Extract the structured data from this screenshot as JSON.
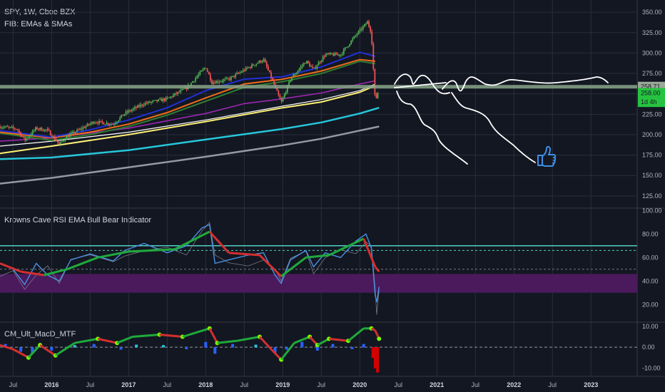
{
  "header": {
    "symbol_line": "SPY, 1W, Cboe BZX",
    "indicator_line": "FIB: EMAs & SMAs"
  },
  "rsi_panel": {
    "title": "Krowns Cave RSI EMA Bull Bear Indicator"
  },
  "macd_panel": {
    "title": "CM_Ult_MacD_MTF"
  },
  "price_tags": [
    {
      "text": "258.71",
      "bg": "#9aa898",
      "fg": "#131722"
    },
    {
      "text": "258.00",
      "bg": "#26c340",
      "fg": "#131722"
    },
    {
      "text": "1d 4h",
      "bg": "#26c340",
      "fg": "#131722"
    }
  ],
  "colors": {
    "background": "#131722",
    "grid": "#2a2e39",
    "price_line": "#89a689",
    "ema_blue": "#2130d8",
    "ema_orange": "#ef6c1a",
    "ema_red": "#c62828",
    "ema_green": "#2e7d32",
    "ema_purple": "#9c27b0",
    "sma_yellow": "#fff176",
    "sma_white": "#ffffff",
    "sma_teal": "#26c6da",
    "sma_gray": "#9598a1",
    "rsi_band": "#4a1a5c",
    "rsi_upper": "#4dd0c1",
    "rsi_line": "#4a90e2",
    "macd_up": "#00c853",
    "macd_down": "#d50000",
    "macd_hist_pos": "#26c6da",
    "macd_hist_blue": "#2962ff",
    "drawing": "#ffffff",
    "thumbs": "#3f8ee8"
  },
  "chart_data": [
    {
      "type": "candlestick",
      "title": "SPY, 1W, Cboe BZX",
      "subtitle": "FIB: EMAs & SMAs",
      "x_ticks": [
        "Jul",
        "2016",
        "Jul",
        "2017",
        "Jul",
        "2018",
        "Jul",
        "2019",
        "Jul",
        "2020",
        "Jul",
        "2021",
        "Jul",
        "2022",
        "Jul",
        "2023"
      ],
      "x_ticks_year": [
        false,
        true,
        false,
        true,
        false,
        true,
        false,
        true,
        false,
        true,
        false,
        true,
        false,
        true,
        false,
        true
      ],
      "y_ticks": [
        350,
        325,
        300,
        275,
        250,
        225,
        200,
        175,
        150,
        125
      ],
      "ylim": [
        110,
        365
      ],
      "x_start": 2015.33,
      "x_end": 2023.6,
      "price_path": [
        [
          2015.33,
          210
        ],
        [
          2015.55,
          207
        ],
        [
          2015.65,
          193
        ],
        [
          2015.8,
          208
        ],
        [
          2015.95,
          205
        ],
        [
          2016.1,
          188
        ],
        [
          2016.2,
          198
        ],
        [
          2016.4,
          208
        ],
        [
          2016.55,
          216
        ],
        [
          2016.8,
          213
        ],
        [
          2016.95,
          226
        ],
        [
          2017.2,
          238
        ],
        [
          2017.5,
          244
        ],
        [
          2017.75,
          257
        ],
        [
          2018.0,
          283
        ],
        [
          2018.08,
          264
        ],
        [
          2018.3,
          268
        ],
        [
          2018.55,
          282
        ],
        [
          2018.75,
          292
        ],
        [
          2018.85,
          270
        ],
        [
          2018.98,
          239
        ],
        [
          2019.1,
          268
        ],
        [
          2019.3,
          290
        ],
        [
          2019.4,
          280
        ],
        [
          2019.55,
          298
        ],
        [
          2019.75,
          298
        ],
        [
          2019.95,
          322
        ],
        [
          2020.1,
          338
        ],
        [
          2020.15,
          325
        ],
        [
          2020.2,
          240
        ],
        [
          2020.25,
          258
        ]
      ],
      "ema_blue_path": [
        [
          2015.33,
          205
        ],
        [
          2016.0,
          197
        ],
        [
          2016.5,
          206
        ],
        [
          2017.0,
          218
        ],
        [
          2017.5,
          233
        ],
        [
          2018.0,
          254
        ],
        [
          2018.5,
          268
        ],
        [
          2019.0,
          271
        ],
        [
          2019.5,
          283
        ],
        [
          2020.0,
          301
        ],
        [
          2020.2,
          296
        ]
      ],
      "ema_orange_path": [
        [
          2015.33,
          203
        ],
        [
          2016.0,
          196
        ],
        [
          2016.5,
          203
        ],
        [
          2017.0,
          213
        ],
        [
          2017.5,
          227
        ],
        [
          2018.0,
          245
        ],
        [
          2018.5,
          262
        ],
        [
          2019.0,
          268
        ],
        [
          2019.5,
          278
        ],
        [
          2020.0,
          292
        ],
        [
          2020.2,
          290
        ]
      ],
      "ema_green_path": [
        [
          2015.33,
          202
        ],
        [
          2016.0,
          193
        ],
        [
          2016.5,
          200
        ],
        [
          2017.0,
          210
        ],
        [
          2017.5,
          224
        ],
        [
          2018.0,
          241
        ],
        [
          2018.5,
          258
        ],
        [
          2019.0,
          265
        ],
        [
          2019.5,
          275
        ],
        [
          2020.0,
          290
        ],
        [
          2020.2,
          287
        ]
      ],
      "sma_purple_path": [
        [
          2015.33,
          192
        ],
        [
          2016.0,
          196
        ],
        [
          2017.0,
          208
        ],
        [
          2018.0,
          226
        ],
        [
          2018.5,
          238
        ],
        [
          2019.0,
          244
        ],
        [
          2019.5,
          251
        ],
        [
          2020.0,
          262
        ],
        [
          2020.2,
          266
        ]
      ],
      "sma_yellow_path": [
        [
          2015.33,
          177
        ],
        [
          2016.0,
          186
        ],
        [
          2017.0,
          200
        ],
        [
          2018.0,
          216
        ],
        [
          2019.0,
          233
        ],
        [
          2019.5,
          240
        ],
        [
          2020.0,
          252
        ],
        [
          2020.2,
          260
        ]
      ],
      "sma_white_path": [
        [
          2015.33,
          186
        ],
        [
          2016.0,
          192
        ],
        [
          2017.0,
          203
        ],
        [
          2018.0,
          218
        ],
        [
          2019.0,
          235
        ],
        [
          2019.5,
          243
        ],
        [
          2020.0,
          254
        ],
        [
          2020.2,
          262
        ]
      ],
      "sma_teal_path": [
        [
          2015.33,
          170
        ],
        [
          2016.0,
          172
        ],
        [
          2017.0,
          181
        ],
        [
          2018.0,
          194
        ],
        [
          2019.0,
          207
        ],
        [
          2019.5,
          215
        ],
        [
          2020.0,
          226
        ],
        [
          2020.25,
          233
        ]
      ],
      "sma_gray_path": [
        [
          2015.33,
          140
        ],
        [
          2016.0,
          147
        ],
        [
          2017.0,
          160
        ],
        [
          2018.0,
          173
        ],
        [
          2019.0,
          187
        ],
        [
          2019.5,
          195
        ],
        [
          2020.0,
          205
        ],
        [
          2020.25,
          210
        ]
      ],
      "horizontal_line": 258.71
    },
    {
      "type": "line",
      "title": "Krowns Cave RSI EMA Bull Bear Indicator",
      "y_ticks": [
        100.0,
        80.0,
        60.0,
        40.0,
        20.0
      ],
      "ylim": [
        5,
        102
      ],
      "band": [
        30,
        46
      ],
      "upper_line": 70,
      "dashed_levels": [
        66,
        50
      ],
      "rsi_path": [
        [
          2015.33,
          55
        ],
        [
          2015.5,
          50
        ],
        [
          2015.65,
          37
        ],
        [
          2015.8,
          55
        ],
        [
          2015.95,
          45
        ],
        [
          2016.1,
          40
        ],
        [
          2016.25,
          58
        ],
        [
          2016.5,
          63
        ],
        [
          2016.8,
          57
        ],
        [
          2016.95,
          66
        ],
        [
          2017.2,
          72
        ],
        [
          2017.5,
          64
        ],
        [
          2017.75,
          70
        ],
        [
          2017.95,
          85
        ],
        [
          2018.05,
          88
        ],
        [
          2018.12,
          55
        ],
        [
          2018.3,
          58
        ],
        [
          2018.55,
          62
        ],
        [
          2018.75,
          64
        ],
        [
          2018.9,
          45
        ],
        [
          2018.98,
          38
        ],
        [
          2019.1,
          58
        ],
        [
          2019.3,
          66
        ],
        [
          2019.4,
          52
        ],
        [
          2019.55,
          64
        ],
        [
          2019.75,
          60
        ],
        [
          2019.95,
          74
        ],
        [
          2020.08,
          80
        ],
        [
          2020.15,
          68
        ],
        [
          2020.2,
          28
        ],
        [
          2020.22,
          22
        ],
        [
          2020.25,
          35
        ]
      ],
      "rsi_ema_path": [
        [
          2015.33,
          55
        ],
        [
          2015.6,
          48
        ],
        [
          2015.9,
          45
        ],
        [
          2016.2,
          50
        ],
        [
          2016.6,
          60
        ],
        [
          2017.0,
          65
        ],
        [
          2017.6,
          67
        ],
        [
          2018.05,
          82
        ],
        [
          2018.3,
          64
        ],
        [
          2018.7,
          62
        ],
        [
          2018.98,
          44
        ],
        [
          2019.3,
          60
        ],
        [
          2019.6,
          62
        ],
        [
          2020.05,
          76
        ],
        [
          2020.2,
          52
        ],
        [
          2020.25,
          48
        ]
      ]
    },
    {
      "type": "line",
      "title": "CM_Ult_MacD_MTF",
      "y_ticks": [
        10.0,
        0.0,
        -10.0
      ],
      "ylim": [
        -14,
        12
      ],
      "zero_line": 0,
      "macd_path": [
        [
          2015.33,
          1
        ],
        [
          2015.5,
          -1
        ],
        [
          2015.7,
          -5
        ],
        [
          2015.85,
          1
        ],
        [
          2016.05,
          -4
        ],
        [
          2016.3,
          2
        ],
        [
          2016.6,
          4
        ],
        [
          2016.85,
          2
        ],
        [
          2017.05,
          5
        ],
        [
          2017.4,
          6
        ],
        [
          2017.7,
          5
        ],
        [
          2018.05,
          9
        ],
        [
          2018.15,
          2
        ],
        [
          2018.4,
          3
        ],
        [
          2018.7,
          5
        ],
        [
          2018.85,
          -1
        ],
        [
          2018.98,
          -6
        ],
        [
          2019.15,
          2
        ],
        [
          2019.35,
          5
        ],
        [
          2019.45,
          1
        ],
        [
          2019.6,
          4
        ],
        [
          2019.85,
          3
        ],
        [
          2020.05,
          9
        ],
        [
          2020.15,
          9
        ],
        [
          2020.2,
          8
        ],
        [
          2020.25,
          4
        ]
      ],
      "hist_bars": [
        [
          2015.4,
          1.5
        ],
        [
          2015.6,
          -2
        ],
        [
          2015.75,
          -3
        ],
        [
          2016.0,
          -1.5
        ],
        [
          2016.3,
          1
        ],
        [
          2016.55,
          1.5
        ],
        [
          2016.9,
          -1
        ],
        [
          2017.1,
          1.2
        ],
        [
          2017.45,
          1
        ],
        [
          2017.75,
          -0.8
        ],
        [
          2018.0,
          2.5
        ],
        [
          2018.12,
          -3
        ],
        [
          2018.35,
          1.5
        ],
        [
          2018.65,
          1.2
        ],
        [
          2018.9,
          -2.5
        ],
        [
          2019.05,
          -1
        ],
        [
          2019.25,
          2.5
        ],
        [
          2019.45,
          -1.5
        ],
        [
          2019.65,
          1.5
        ],
        [
          2019.9,
          -0.8
        ],
        [
          2020.05,
          1.5
        ],
        [
          2020.17,
          -5
        ],
        [
          2020.2,
          -10
        ],
        [
          2020.23,
          -12
        ]
      ]
    }
  ]
}
